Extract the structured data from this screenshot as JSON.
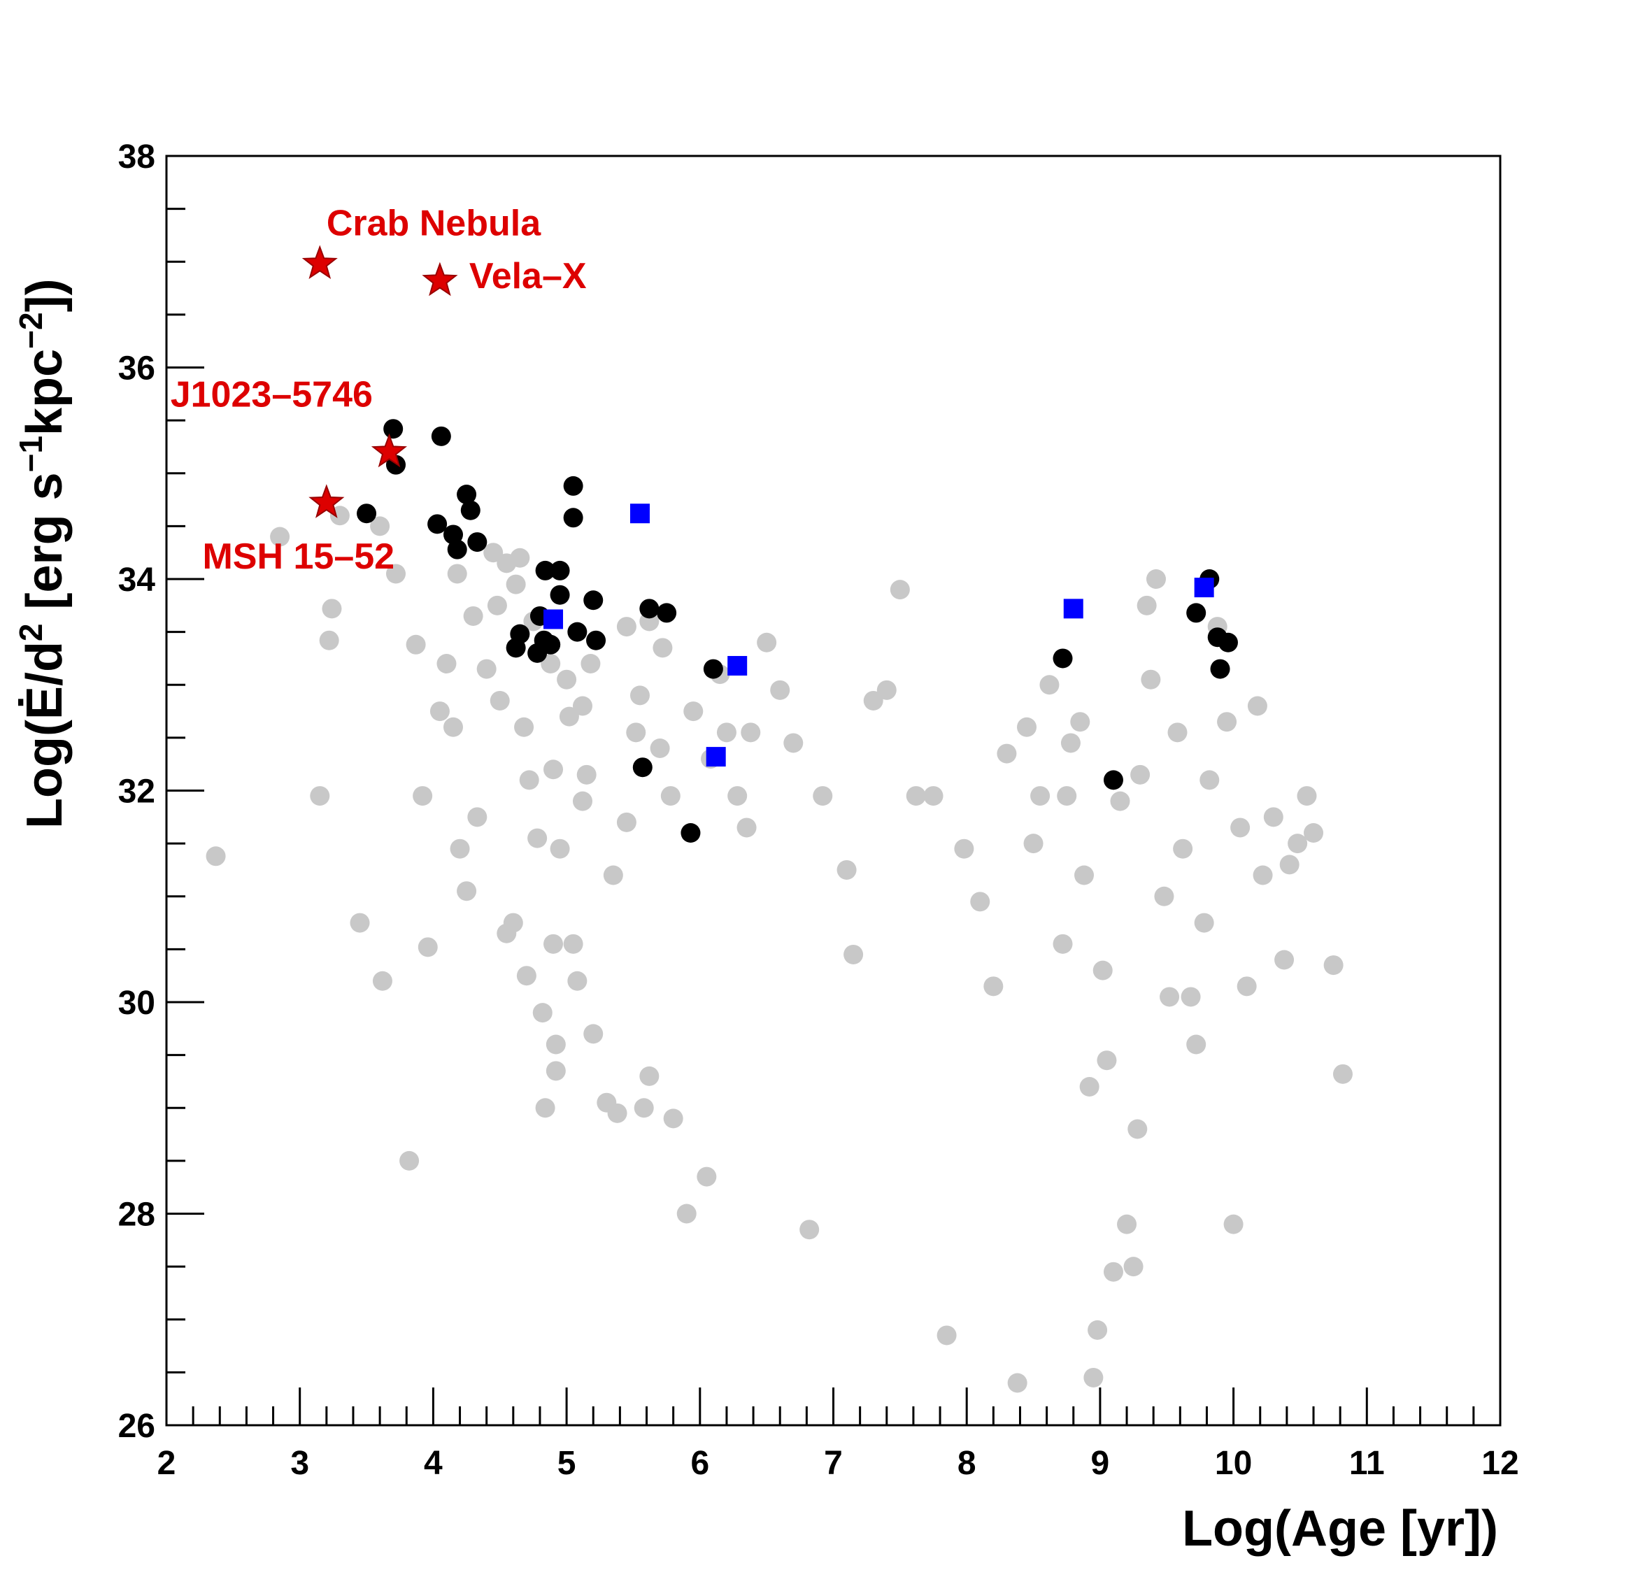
{
  "chart_data": {
    "type": "scatter",
    "title": "",
    "xlabel": "Log(Age [yr])",
    "ylabel_parts": {
      "pre": "Log(",
      "edot": "Ė",
      "slash": "/d",
      "sq": "2",
      "bracket": " [erg s",
      "neg1": "−1",
      "kpc": "kpc",
      "neg2": "−2",
      "close": "])"
    },
    "xlim": [
      2,
      12
    ],
    "ylim": [
      26,
      38
    ],
    "xticks": [
      {
        "value": 2,
        "label": "2"
      },
      {
        "value": 3,
        "label": "3"
      },
      {
        "value": 4,
        "label": "4"
      },
      {
        "value": 5,
        "label": "5"
      },
      {
        "value": 6,
        "label": "6"
      },
      {
        "value": 7,
        "label": "7"
      },
      {
        "value": 8,
        "label": "8"
      },
      {
        "value": 9,
        "label": "9"
      },
      {
        "value": 10,
        "label": "10"
      },
      {
        "value": 11,
        "label": "11"
      },
      {
        "value": 12,
        "label": "12"
      }
    ],
    "yticks": [
      {
        "value": 26,
        "label": "26"
      },
      {
        "value": 28,
        "label": "28"
      },
      {
        "value": 30,
        "label": "30"
      },
      {
        "value": 32,
        "label": "32"
      },
      {
        "value": 34,
        "label": "34"
      },
      {
        "value": 36,
        "label": "36"
      },
      {
        "value": 38,
        "label": "38"
      }
    ],
    "grid": false,
    "colors": {
      "gray": "#c8c8c8",
      "black": "#000000",
      "blue": "#0000ff",
      "red": "#dd0000",
      "star_edge": "#990000"
    },
    "series": [
      {
        "marker": "circle",
        "color": "#c8c8c8",
        "points": [
          [
            2.37,
            31.38
          ],
          [
            2.85,
            34.4
          ],
          [
            3.15,
            31.95
          ],
          [
            3.22,
            33.42
          ],
          [
            3.24,
            33.72
          ],
          [
            3.45,
            30.75
          ],
          [
            3.62,
            30.2
          ],
          [
            3.72,
            34.05
          ],
          [
            3.82,
            28.5
          ],
          [
            3.87,
            33.38
          ],
          [
            3.92,
            31.95
          ],
          [
            3.96,
            30.52
          ],
          [
            4.05,
            32.75
          ],
          [
            4.1,
            33.2
          ],
          [
            4.15,
            32.6
          ],
          [
            4.2,
            31.45
          ],
          [
            4.25,
            31.05
          ],
          [
            4.33,
            31.75
          ],
          [
            4.4,
            33.15
          ],
          [
            4.48,
            33.75
          ],
          [
            4.55,
            30.65
          ],
          [
            4.6,
            30.75
          ],
          [
            4.65,
            34.2
          ],
          [
            4.72,
            32.1
          ],
          [
            4.7,
            30.25
          ],
          [
            4.78,
            31.55
          ],
          [
            4.82,
            29.9
          ],
          [
            4.84,
            29.0
          ],
          [
            4.9,
            30.55
          ],
          [
            4.92,
            29.6
          ],
          [
            4.92,
            29.35
          ],
          [
            4.95,
            31.45
          ],
          [
            5.02,
            32.7
          ],
          [
            5.05,
            30.55
          ],
          [
            5.08,
            30.2
          ],
          [
            5.12,
            31.9
          ],
          [
            5.15,
            32.15
          ],
          [
            5.2,
            29.7
          ],
          [
            5.3,
            29.05
          ],
          [
            5.38,
            28.95
          ],
          [
            5.45,
            31.7
          ],
          [
            5.52,
            32.55
          ],
          [
            5.55,
            32.9
          ],
          [
            5.58,
            29.0
          ],
          [
            5.62,
            29.3
          ],
          [
            5.7,
            32.4
          ],
          [
            5.8,
            28.9
          ],
          [
            5.9,
            28.0
          ],
          [
            5.95,
            32.75
          ],
          [
            6.05,
            28.35
          ],
          [
            6.15,
            33.1
          ],
          [
            6.2,
            32.55
          ],
          [
            6.35,
            31.65
          ],
          [
            6.38,
            32.55
          ],
          [
            6.5,
            33.4
          ],
          [
            6.6,
            32.95
          ],
          [
            6.7,
            32.45
          ],
          [
            6.82,
            27.85
          ],
          [
            6.92,
            31.95
          ],
          [
            7.1,
            31.25
          ],
          [
            7.15,
            30.45
          ],
          [
            7.3,
            32.85
          ],
          [
            7.4,
            32.95
          ],
          [
            7.5,
            33.9
          ],
          [
            7.62,
            31.95
          ],
          [
            7.75,
            31.95
          ],
          [
            7.85,
            26.85
          ],
          [
            7.98,
            31.45
          ],
          [
            8.1,
            30.95
          ],
          [
            8.2,
            30.15
          ],
          [
            8.3,
            32.35
          ],
          [
            8.38,
            26.4
          ],
          [
            8.45,
            32.6
          ],
          [
            8.5,
            31.5
          ],
          [
            8.55,
            31.95
          ],
          [
            8.62,
            33.0
          ],
          [
            8.72,
            30.55
          ],
          [
            8.75,
            31.95
          ],
          [
            8.78,
            32.45
          ],
          [
            8.85,
            32.65
          ],
          [
            8.88,
            31.2
          ],
          [
            8.92,
            29.2
          ],
          [
            8.95,
            26.45
          ],
          [
            8.98,
            26.9
          ],
          [
            9.02,
            30.3
          ],
          [
            9.05,
            29.45
          ],
          [
            9.1,
            27.45
          ],
          [
            9.15,
            31.9
          ],
          [
            9.2,
            27.9
          ],
          [
            9.25,
            27.5
          ],
          [
            9.28,
            28.8
          ],
          [
            9.3,
            32.15
          ],
          [
            9.35,
            33.75
          ],
          [
            9.38,
            33.05
          ],
          [
            9.42,
            34.0
          ],
          [
            9.48,
            31.0
          ],
          [
            9.52,
            30.05
          ],
          [
            9.58,
            32.55
          ],
          [
            9.62,
            31.45
          ],
          [
            9.68,
            30.05
          ],
          [
            9.72,
            29.6
          ],
          [
            9.78,
            30.75
          ],
          [
            9.82,
            32.1
          ],
          [
            9.88,
            33.55
          ],
          [
            9.95,
            32.65
          ],
          [
            10.0,
            27.9
          ],
          [
            10.05,
            31.65
          ],
          [
            10.1,
            30.15
          ],
          [
            10.18,
            32.8
          ],
          [
            10.22,
            31.2
          ],
          [
            10.3,
            31.75
          ],
          [
            10.38,
            30.4
          ],
          [
            10.42,
            31.3
          ],
          [
            10.48,
            31.5
          ],
          [
            10.55,
            31.95
          ],
          [
            10.6,
            31.6
          ],
          [
            10.75,
            30.35
          ],
          [
            10.82,
            29.32
          ],
          [
            3.3,
            34.6
          ],
          [
            3.6,
            34.5
          ],
          [
            4.45,
            34.25
          ],
          [
            4.55,
            34.15
          ],
          [
            4.62,
            33.95
          ],
          [
            4.75,
            33.6
          ],
          [
            4.88,
            33.2
          ],
          [
            5.0,
            33.05
          ],
          [
            5.18,
            33.2
          ],
          [
            5.45,
            33.55
          ],
          [
            5.62,
            33.6
          ],
          [
            5.72,
            33.35
          ],
          [
            4.18,
            34.05
          ],
          [
            4.3,
            33.65
          ],
          [
            4.5,
            32.85
          ],
          [
            4.68,
            32.6
          ],
          [
            4.9,
            32.2
          ],
          [
            5.12,
            32.8
          ],
          [
            6.08,
            32.3
          ],
          [
            6.28,
            31.95
          ],
          [
            5.35,
            31.2
          ],
          [
            5.78,
            31.95
          ]
        ]
      },
      {
        "marker": "circle",
        "color": "#000000",
        "points": [
          [
            3.5,
            34.62
          ],
          [
            3.7,
            35.42
          ],
          [
            3.72,
            35.08
          ],
          [
            4.03,
            34.52
          ],
          [
            4.06,
            35.35
          ],
          [
            4.15,
            34.42
          ],
          [
            4.18,
            34.28
          ],
          [
            4.25,
            34.8
          ],
          [
            4.28,
            34.65
          ],
          [
            4.33,
            34.35
          ],
          [
            4.62,
            33.35
          ],
          [
            4.65,
            33.48
          ],
          [
            4.78,
            33.3
          ],
          [
            4.8,
            33.65
          ],
          [
            4.83,
            33.42
          ],
          [
            4.84,
            34.08
          ],
          [
            4.88,
            33.38
          ],
          [
            4.95,
            34.08
          ],
          [
            4.95,
            33.85
          ],
          [
            5.05,
            34.88
          ],
          [
            5.05,
            34.58
          ],
          [
            5.08,
            33.5
          ],
          [
            5.2,
            33.8
          ],
          [
            5.22,
            33.42
          ],
          [
            5.57,
            32.22
          ],
          [
            5.62,
            33.72
          ],
          [
            5.75,
            33.68
          ],
          [
            5.93,
            31.6
          ],
          [
            6.1,
            33.15
          ],
          [
            8.72,
            33.25
          ],
          [
            9.1,
            32.1
          ],
          [
            9.72,
            33.68
          ],
          [
            9.82,
            34.0
          ],
          [
            9.88,
            33.45
          ],
          [
            9.9,
            33.15
          ],
          [
            9.96,
            33.4
          ]
        ]
      },
      {
        "marker": "square",
        "color": "#0000ff",
        "points": [
          [
            4.9,
            33.62
          ],
          [
            5.55,
            34.62
          ],
          [
            6.12,
            32.32
          ],
          [
            6.28,
            33.18
          ],
          [
            8.8,
            33.72
          ],
          [
            9.78,
            33.92
          ]
        ]
      },
      {
        "marker": "star",
        "color": "#dd0000",
        "points": [
          [
            3.15,
            36.98
          ],
          [
            4.05,
            36.82
          ],
          [
            3.67,
            35.2
          ],
          [
            3.2,
            34.72
          ]
        ]
      }
    ],
    "annotations": [
      {
        "text": "Crab Nebula",
        "x": 3.2,
        "y": 37.25,
        "color": "#dd0000"
      },
      {
        "text": "Vela–X",
        "x": 4.27,
        "y": 36.75,
        "color": "#dd0000"
      },
      {
        "text": "J1023–5746",
        "x": 2.03,
        "y": 35.63,
        "color": "#dd0000"
      },
      {
        "text": "MSH 15–52",
        "x": 2.27,
        "y": 34.1,
        "color": "#dd0000"
      }
    ]
  }
}
